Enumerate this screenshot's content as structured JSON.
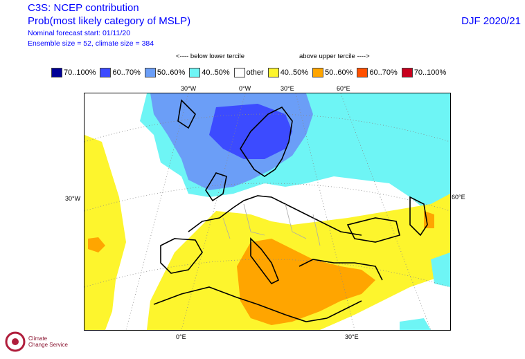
{
  "header": {
    "line1": "C3S: NCEP contribution",
    "line2": "Prob(most likely category of MSLP)",
    "line3": "Nominal forecast start: 01/11/20",
    "line4": "Ensemble size = 52, climate size = 384",
    "season": "DJF 2020/21"
  },
  "legend": {
    "below_label": "<---- below lower tercile",
    "above_label": "above upper tercile ---->",
    "items": [
      {
        "label": "70..100%",
        "color": "#000096"
      },
      {
        "label": "60..70%",
        "color": "#3c4bff"
      },
      {
        "label": "50..60%",
        "color": "#6b9ef7"
      },
      {
        "label": "40..50%",
        "color": "#6ef5f5"
      },
      {
        "label": "other",
        "color": "#ffffff"
      },
      {
        "label": "40..50%",
        "color": "#fdf52d"
      },
      {
        "label": "50..60%",
        "color": "#ffa500"
      },
      {
        "label": "60..70%",
        "color": "#ff5000"
      },
      {
        "label": "70..100%",
        "color": "#c8001e"
      }
    ]
  },
  "map": {
    "top_ticks": [
      "30°W",
      "0°W",
      "30°E",
      "60°E"
    ],
    "bottom_ticks": [
      "0°E",
      "30°E"
    ],
    "left_tick": "30°W",
    "right_tick": "60°E"
  },
  "logo": {
    "line1": "Climate",
    "line2": "Change Service"
  }
}
